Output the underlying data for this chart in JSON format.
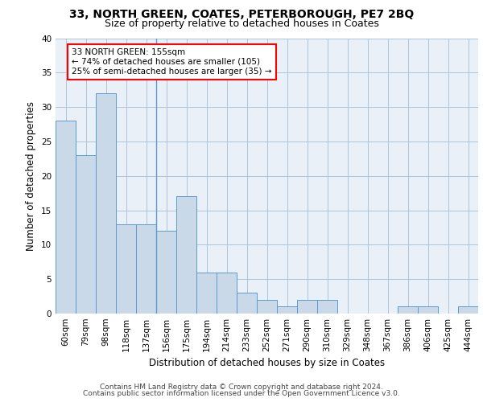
{
  "title_line1": "33, NORTH GREEN, COATES, PETERBOROUGH, PE7 2BQ",
  "title_line2": "Size of property relative to detached houses in Coates",
  "xlabel": "Distribution of detached houses by size in Coates",
  "ylabel": "Number of detached properties",
  "categories": [
    "60sqm",
    "79sqm",
    "98sqm",
    "118sqm",
    "137sqm",
    "156sqm",
    "175sqm",
    "194sqm",
    "214sqm",
    "233sqm",
    "252sqm",
    "271sqm",
    "290sqm",
    "310sqm",
    "329sqm",
    "348sqm",
    "367sqm",
    "386sqm",
    "406sqm",
    "425sqm",
    "444sqm"
  ],
  "values": [
    28,
    23,
    32,
    13,
    13,
    12,
    17,
    6,
    6,
    3,
    2,
    1,
    2,
    2,
    0,
    0,
    0,
    1,
    1,
    0,
    1
  ],
  "bar_color": "#c9d9e8",
  "bar_edge_color": "#5b9bd5",
  "highlight_index": 5,
  "annotation_text": "33 NORTH GREEN: 155sqm\n← 74% of detached houses are smaller (105)\n25% of semi-detached houses are larger (35) →",
  "annotation_box_color": "white",
  "annotation_box_edge_color": "red",
  "ylim": [
    0,
    40
  ],
  "yticks": [
    0,
    5,
    10,
    15,
    20,
    25,
    30,
    35,
    40
  ],
  "grid_color": "#b0c4d8",
  "background_color": "#eaf0f8",
  "footer_line1": "Contains HM Land Registry data © Crown copyright and database right 2024.",
  "footer_line2": "Contains public sector information licensed under the Open Government Licence v3.0.",
  "title_fontsize": 10,
  "subtitle_fontsize": 9,
  "axis_label_fontsize": 8.5,
  "tick_fontsize": 7.5,
  "annotation_fontsize": 7.5,
  "footer_fontsize": 6.5
}
